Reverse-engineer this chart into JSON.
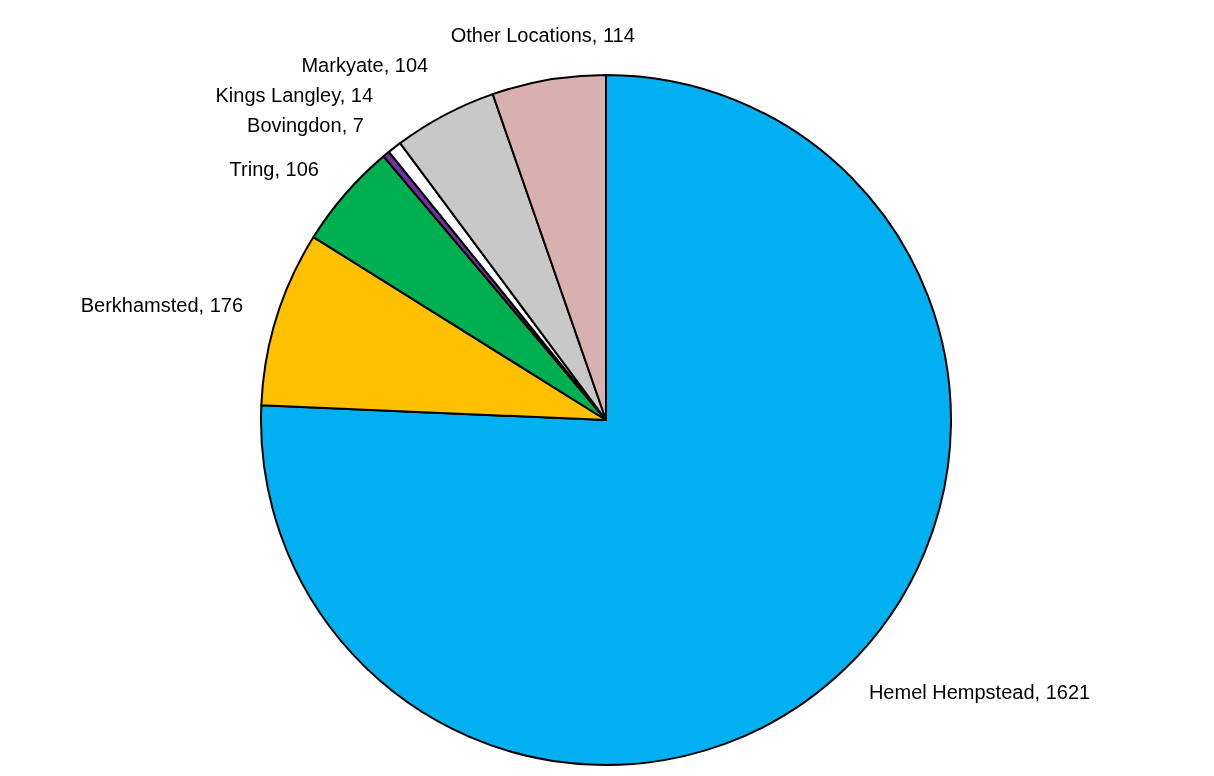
{
  "chart_data": {
    "type": "pie",
    "categories": [
      "Hemel Hempstead",
      "Berkhamsted",
      "Tring",
      "Bovingdon",
      "Kings Langley",
      "Markyate",
      "Other Locations"
    ],
    "values": [
      1621,
      176,
      106,
      7,
      14,
      104,
      114
    ],
    "value_labels": [
      ", 1621",
      ", 176",
      ", 106",
      ", 7",
      ", 14",
      ", 104",
      ", 114"
    ],
    "colors": [
      "#00b0f0",
      "#ffc000",
      "#00b050",
      "#7030a0",
      "#ffffff",
      "#c8c8c8",
      "#d8b0b0"
    ]
  }
}
